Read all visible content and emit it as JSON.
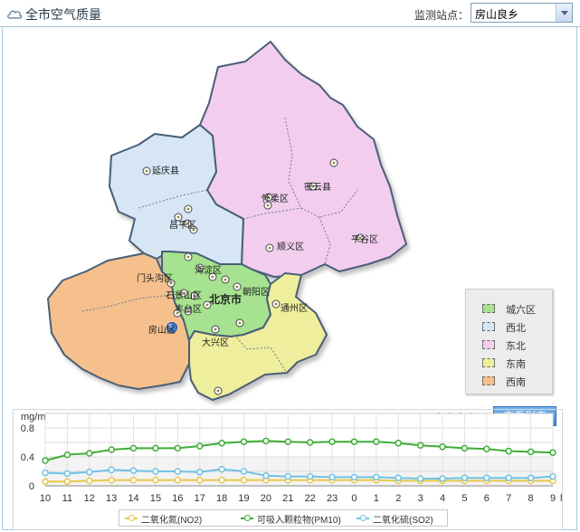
{
  "header": {
    "title": "全市空气质量",
    "station_label": "监测站点：",
    "station_value": "房山良乡"
  },
  "map": {
    "districts": [
      {
        "name": "延庆县",
        "group": "northwest"
      },
      {
        "name": "昌平区",
        "group": "northwest"
      },
      {
        "name": "怀柔区",
        "group": "northeast"
      },
      {
        "name": "密云县",
        "group": "northeast"
      },
      {
        "name": "平谷区",
        "group": "northeast"
      },
      {
        "name": "顺义区",
        "group": "northeast"
      },
      {
        "name": "门头沟区",
        "group": "southwest"
      },
      {
        "name": "海淀区",
        "group": "urban"
      },
      {
        "name": "石景山区",
        "group": "urban"
      },
      {
        "name": "朝阳区",
        "group": "urban"
      },
      {
        "name": "丰台区",
        "group": "urban"
      },
      {
        "name": "北京市",
        "group": "urban"
      },
      {
        "name": "通州区",
        "group": "southeast"
      },
      {
        "name": "房山区",
        "group": "southwest"
      },
      {
        "name": "大兴区",
        "group": "southeast"
      }
    ],
    "colors": {
      "urban": "#a6e28f",
      "northwest": "#d6e6f5",
      "northeast": "#f2cdee",
      "southeast": "#efee9c",
      "southwest": "#f5c08c"
    }
  },
  "legend": {
    "items": [
      {
        "label": "城六区",
        "color": "#a6e28f"
      },
      {
        "label": "西北",
        "color": "#d6e6f5"
      },
      {
        "label": "东北",
        "color": "#f2cdee"
      },
      {
        "label": "东南",
        "color": "#efee9c"
      },
      {
        "label": "西南",
        "color": "#f5c08c"
      }
    ]
  },
  "controls": {
    "unit": "mg/m³",
    "station_name": "房山良乡",
    "list_button": "查看列表"
  },
  "chart_data": {
    "type": "line",
    "xlabel": "h",
    "ylabel": "mg/m³",
    "ylim": [
      0,
      1.0
    ],
    "yticks": [
      "0",
      "0.4",
      "0.8"
    ],
    "categories": [
      "10",
      "11",
      "12",
      "13",
      "14",
      "15",
      "16",
      "17",
      "18",
      "19",
      "20",
      "21",
      "22",
      "23",
      "0",
      "1",
      "2",
      "3",
      "4",
      "5",
      "6",
      "7",
      "8",
      "9"
    ],
    "grid": true,
    "legend_position": "bottom",
    "series": [
      {
        "name": "二氧化氮(NO2)",
        "color": "#e8c84a",
        "values": [
          0.06,
          0.06,
          0.07,
          0.08,
          0.08,
          0.08,
          0.08,
          0.08,
          0.08,
          0.08,
          0.08,
          0.08,
          0.08,
          0.08,
          0.08,
          0.08,
          0.07,
          0.07,
          0.07,
          0.07,
          0.07,
          0.07,
          0.07,
          0.07
        ]
      },
      {
        "name": "可吸入颗粒物(PM10)",
        "color": "#3fae36",
        "values": [
          0.35,
          0.43,
          0.45,
          0.5,
          0.52,
          0.52,
          0.52,
          0.55,
          0.59,
          0.61,
          0.62,
          0.61,
          0.6,
          0.61,
          0.61,
          0.61,
          0.59,
          0.56,
          0.54,
          0.52,
          0.51,
          0.48,
          0.47,
          0.46
        ]
      },
      {
        "name": "二氧化硫(SO2)",
        "color": "#6fc2e2",
        "values": [
          0.18,
          0.17,
          0.19,
          0.22,
          0.21,
          0.2,
          0.2,
          0.19,
          0.23,
          0.2,
          0.14,
          0.13,
          0.13,
          0.12,
          0.12,
          0.12,
          0.11,
          0.1,
          0.1,
          0.11,
          0.11,
          0.11,
          0.11,
          0.13
        ]
      }
    ]
  }
}
